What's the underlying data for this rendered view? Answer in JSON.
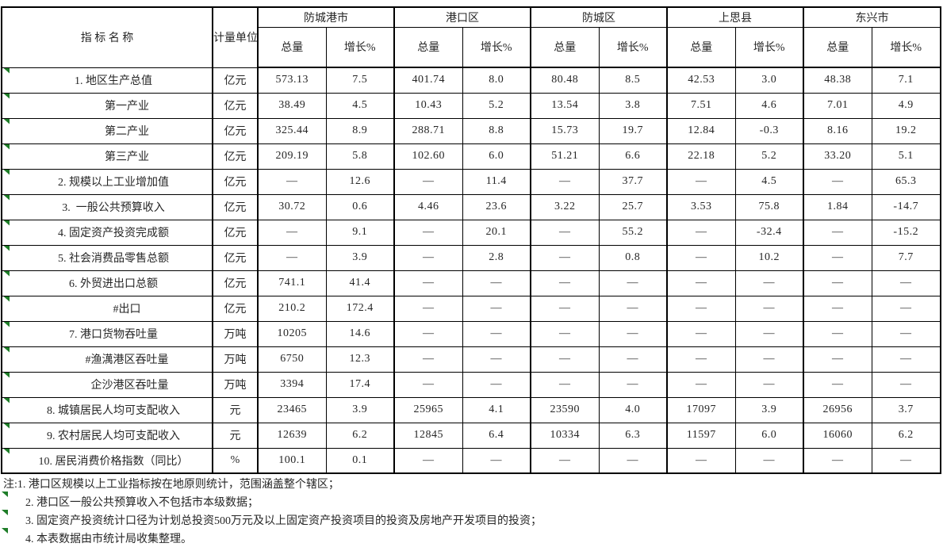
{
  "colors": {
    "flag_green": "#1e7d28",
    "border_black": "#000000",
    "text": "#262626"
  },
  "table": {
    "indicator_header": "指  标  名  称",
    "unit_header": "计量单位",
    "col_subheaders": {
      "total": "总量",
      "growth": "增长%"
    },
    "regions": [
      "防城港市",
      "港口区",
      "防城区",
      "上思县",
      "东兴市"
    ],
    "rows": [
      {
        "name": "1. 地区生产总值",
        "indent": 0,
        "unit": "亿元",
        "values": [
          "573.13",
          "7.5",
          "401.74",
          "8.0",
          "80.48",
          "8.5",
          "42.53",
          "3.0",
          "48.38",
          "7.1"
        ]
      },
      {
        "name": "第一产业",
        "indent": 1,
        "unit": "亿元",
        "values": [
          "38.49",
          "4.5",
          "10.43",
          "5.2",
          "13.54",
          "3.8",
          "7.51",
          "4.6",
          "7.01",
          "4.9"
        ]
      },
      {
        "name": "第二产业",
        "indent": 1,
        "unit": "亿元",
        "values": [
          "325.44",
          "8.9",
          "288.71",
          "8.8",
          "15.73",
          "19.7",
          "12.84",
          "-0.3",
          "8.16",
          "19.2"
        ]
      },
      {
        "name": "第三产业",
        "indent": 1,
        "unit": "亿元",
        "values": [
          "209.19",
          "5.8",
          "102.60",
          "6.0",
          "51.21",
          "6.6",
          "22.18",
          "5.2",
          "33.20",
          "5.1"
        ]
      },
      {
        "name": "2. 规模以上工业增加值",
        "indent": 0,
        "unit": "亿元",
        "values": [
          "—",
          "12.6",
          "—",
          "11.4",
          "—",
          "37.7",
          "—",
          "4.5",
          "—",
          "65.3"
        ]
      },
      {
        "name": "3.  一般公共预算收入",
        "indent": 0,
        "unit": "亿元",
        "values": [
          "30.72",
          "0.6",
          "4.46",
          "23.6",
          "3.22",
          "25.7",
          "3.53",
          "75.8",
          "1.84",
          "-14.7"
        ]
      },
      {
        "name": "4. 固定资产投资完成额",
        "indent": 0,
        "unit": "亿元",
        "values": [
          "—",
          "9.1",
          "—",
          "20.1",
          "—",
          "55.2",
          "—",
          "-32.4",
          "—",
          "-15.2"
        ]
      },
      {
        "name": "5. 社会消费品零售总额",
        "indent": 0,
        "unit": "亿元",
        "values": [
          "—",
          "3.9",
          "—",
          "2.8",
          "—",
          "0.8",
          "—",
          "10.2",
          "—",
          "7.7"
        ]
      },
      {
        "name": "6. 外贸进出口总额",
        "indent": 0,
        "unit": "亿元",
        "values": [
          "741.1",
          "41.4",
          "—",
          "—",
          "—",
          "—",
          "—",
          "—",
          "—",
          "—"
        ]
      },
      {
        "name": "#出口",
        "indent": 1,
        "unit": "亿元",
        "values": [
          "210.2",
          "172.4",
          "—",
          "—",
          "—",
          "—",
          "—",
          "—",
          "—",
          "—"
        ]
      },
      {
        "name": "7. 港口货物吞吐量",
        "indent": 0,
        "unit": "万吨",
        "values": [
          "10205",
          "14.6",
          "—",
          "—",
          "—",
          "—",
          "—",
          "—",
          "—",
          "—"
        ]
      },
      {
        "name": "#渔澫港区吞吐量",
        "indent": 1,
        "unit": "万吨",
        "values": [
          "6750",
          "12.3",
          "—",
          "—",
          "—",
          "—",
          "—",
          "—",
          "—",
          "—"
        ]
      },
      {
        "name": "企沙港区吞吐量",
        "indent": 2,
        "unit": "万吨",
        "values": [
          "3394",
          "17.4",
          "—",
          "—",
          "—",
          "—",
          "—",
          "—",
          "—",
          "—"
        ]
      },
      {
        "name": "8. 城镇居民人均可支配收入",
        "indent": 0,
        "unit": "元",
        "values": [
          "23465",
          "3.9",
          "25965",
          "4.1",
          "23590",
          "4.0",
          "17097",
          "3.9",
          "26956",
          "3.7"
        ]
      },
      {
        "name": "9. 农村居民人均可支配收入",
        "indent": 0,
        "unit": "元",
        "values": [
          "12639",
          "6.2",
          "12845",
          "6.4",
          "10334",
          "6.3",
          "11597",
          "6.0",
          "16060",
          "6.2"
        ]
      },
      {
        "name": "10. 居民消费价格指数（同比）",
        "indent": 0,
        "unit": "%",
        "values": [
          "100.1",
          "0.1",
          "—",
          "—",
          "—",
          "—",
          "—",
          "—",
          "—",
          "—"
        ]
      }
    ]
  },
  "notes": [
    "注:1. 港口区规模以上工业指标按在地原则统计，范围涵盖整个辖区；",
    "2. 港口区一般公共预算收入不包括市本级数据；",
    "3. 固定资产投资统计口径为计划总投资500万元及以上固定资产投资项目的投资及房地产开发项目的投资；",
    "4. 本表数据由市统计局收集整理。"
  ]
}
